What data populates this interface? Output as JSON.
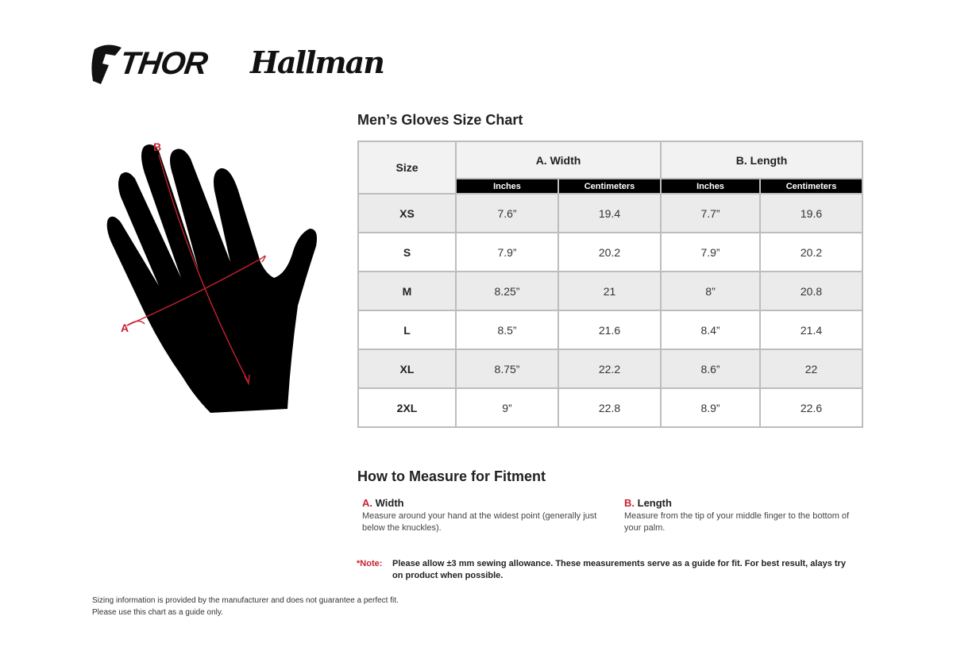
{
  "brand": {
    "logo1": "THOR",
    "logo2": "Hallman"
  },
  "chart_title": "Men’s Gloves Size Chart",
  "diagram": {
    "label_a": "A",
    "label_b": "B",
    "accent": "#c8202f"
  },
  "table": {
    "size_header": "Size",
    "width_header": "A. Width",
    "length_header": "B. Length",
    "sub_headers": [
      "Inches",
      "Centimeters",
      "Inches",
      "Centimeters"
    ],
    "rows": [
      {
        "size": "XS",
        "w_in": "7.6”",
        "w_cm": "19.4",
        "l_in": "7.7”",
        "l_cm": "19.6"
      },
      {
        "size": "S",
        "w_in": "7.9”",
        "w_cm": "20.2",
        "l_in": "7.9”",
        "l_cm": "20.2"
      },
      {
        "size": "M",
        "w_in": "8.25”",
        "w_cm": "21",
        "l_in": "8”",
        "l_cm": "20.8"
      },
      {
        "size": "L",
        "w_in": "8.5”",
        "w_cm": "21.6",
        "l_in": "8.4”",
        "l_cm": "21.4"
      },
      {
        "size": "XL",
        "w_in": "8.75”",
        "w_cm": "22.2",
        "l_in": "8.6”",
        "l_cm": "22"
      },
      {
        "size": "2XL",
        "w_in": "9”",
        "w_cm": "22.8",
        "l_in": "8.9”",
        "l_cm": "22.6"
      }
    ]
  },
  "measure": {
    "title": "How to Measure for Fitment",
    "a": {
      "letter": "A.",
      "name": "Width",
      "desc": "Measure around your hand at the widest point (generally just below the knuckles)."
    },
    "b": {
      "letter": "B.",
      "name": "Length",
      "desc": "Measure from the tip of your middle finger to the bottom of your palm."
    }
  },
  "note": {
    "key": "*Note:",
    "text": "Please allow ±3 mm sewing allowance. These measurements serve as a guide for fit. For best result, alays try on product when possible."
  },
  "disclaimer": {
    "line1": "Sizing information is provided by the manufacturer and does not guarantee a perfect fit.",
    "line2": "Please use this chart as a guide only."
  }
}
